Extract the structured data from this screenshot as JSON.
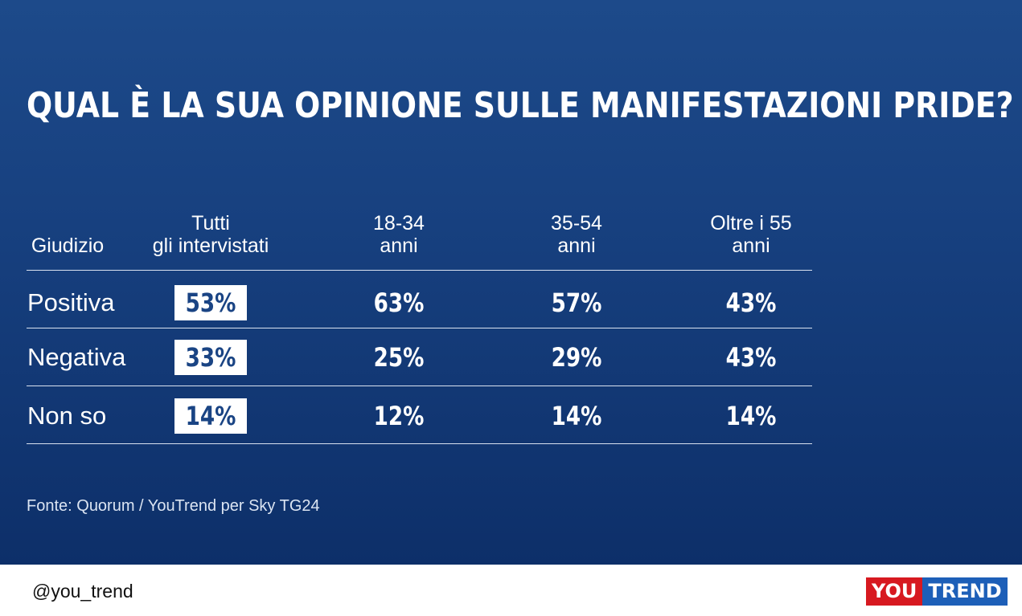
{
  "title": "QUAL È LA SUA OPINIONE SULLE MANIFESTAZIONI PRIDE?",
  "chart_data": {
    "type": "table",
    "columns": [
      {
        "line1": "",
        "line2": "Giudizio"
      },
      {
        "line1": "Tutti",
        "line2": "gli intervistati"
      },
      {
        "line1": "18-34",
        "line2": "anni"
      },
      {
        "line1": "35-54",
        "line2": "anni"
      },
      {
        "line1": "Oltre i 55",
        "line2": "anni"
      }
    ],
    "rows": [
      {
        "label": "Positiva",
        "values": [
          "53%",
          "63%",
          "57%",
          "43%"
        ]
      },
      {
        "label": "Negativa",
        "values": [
          "33%",
          "25%",
          "29%",
          "43%"
        ]
      },
      {
        "label": "Non so",
        "values": [
          "14%",
          "12%",
          "14%",
          "14%"
        ]
      }
    ],
    "highlight_column": 1,
    "colors": {
      "background": "#17407f",
      "highlight_box": "#ffffff",
      "highlight_text": "#1a4484"
    }
  },
  "source": "Fonte: Quorum / YouTrend per Sky TG24",
  "footer": {
    "handle": "@you_trend",
    "logo_left": "YOU",
    "logo_right": "TREND",
    "logo_colors": {
      "left": "#d71920",
      "right": "#1d5fb8"
    }
  }
}
